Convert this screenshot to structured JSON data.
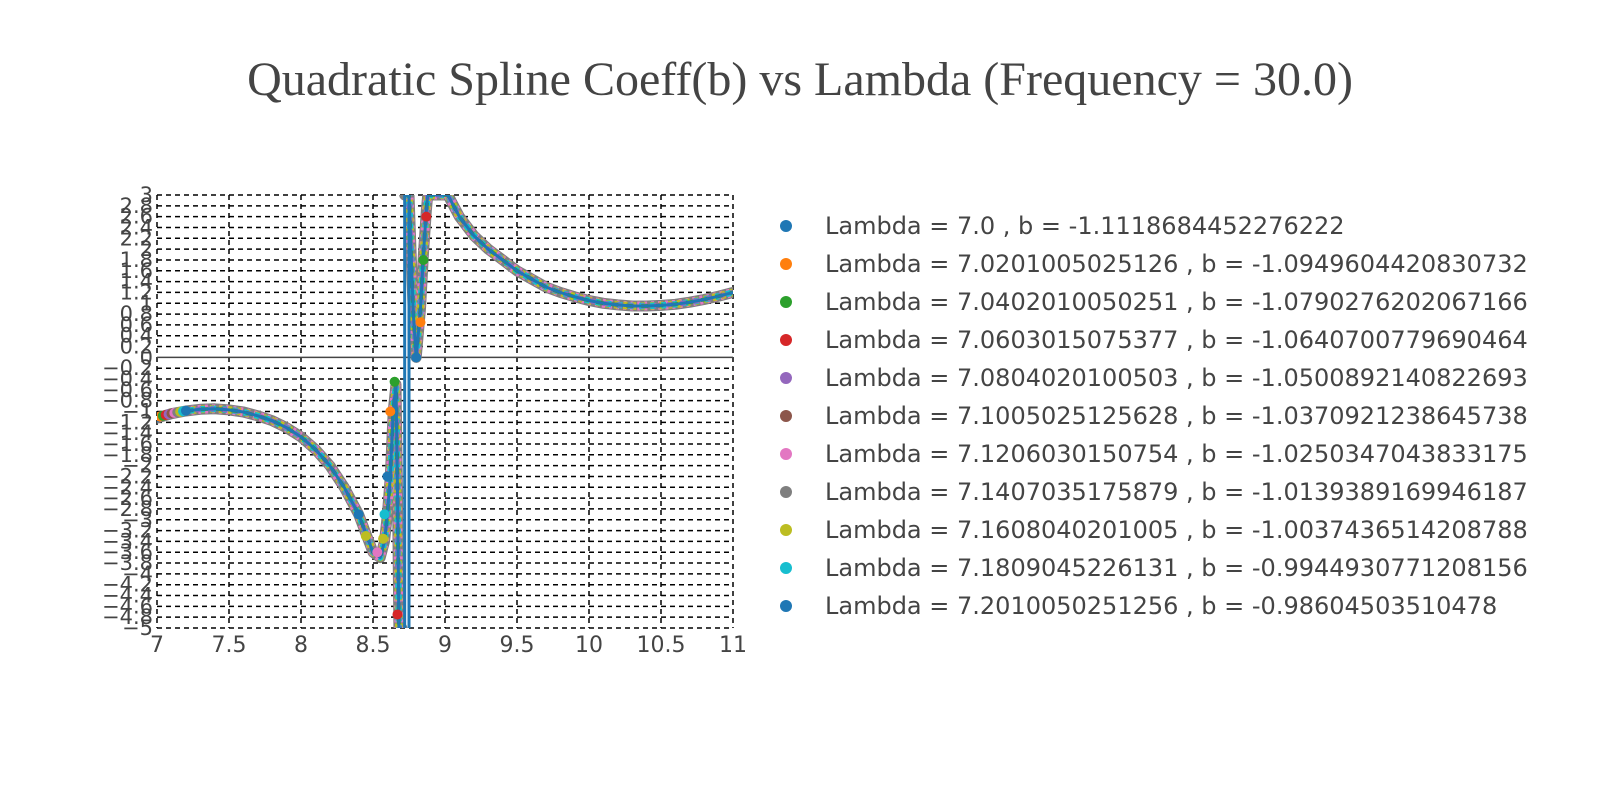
{
  "chart_data": {
    "type": "scatter",
    "title": "Quadratic Spline Coeff(b) vs Lambda (Frequency = 30.0)",
    "xlabel": "",
    "ylabel": "",
    "xlim": [
      7,
      11
    ],
    "ylim": [
      -5,
      3
    ],
    "x_ticks": [
      "7",
      "7.5",
      "8",
      "8.5",
      "9",
      "9.5",
      "10",
      "10.5",
      "11"
    ],
    "y_ticks": [
      "−5",
      "−4.8",
      "−4.6",
      "−4.4",
      "−4.2",
      "−4",
      "−3.8",
      "−3.6",
      "−3.4",
      "−3.2",
      "−3",
      "−2.8",
      "−2.6",
      "−2.4",
      "−2.2",
      "−2",
      "−1.8",
      "−1.6",
      "−1.4",
      "−1.2",
      "−1",
      "−0.8",
      "−0.6",
      "−0.4",
      "−0.2",
      "0",
      "0.2",
      "0.4",
      "0.6",
      "0.8",
      "1",
      "1.2",
      "1.4",
      "1.6",
      "1.8",
      "2",
      "2.2",
      "2.4",
      "2.6",
      "2.8",
      "3"
    ],
    "grid": true,
    "grid_style": "dashed",
    "legend_position": "right",
    "curve_color": "#1f77b4",
    "curve_samples": [
      [
        7.0,
        -1.12
      ],
      [
        7.1,
        -1.04
      ],
      [
        7.2,
        -0.99
      ],
      [
        7.3,
        -0.96
      ],
      [
        7.4,
        -0.95
      ],
      [
        7.5,
        -0.97
      ],
      [
        7.6,
        -1.01
      ],
      [
        7.7,
        -1.08
      ],
      [
        7.8,
        -1.17
      ],
      [
        7.9,
        -1.3
      ],
      [
        8.0,
        -1.47
      ],
      [
        8.1,
        -1.7
      ],
      [
        8.2,
        -2.0
      ],
      [
        8.3,
        -2.4
      ],
      [
        8.4,
        -2.9
      ],
      [
        8.45,
        -3.25
      ],
      [
        8.5,
        -3.6
      ],
      [
        8.55,
        -3.7
      ],
      [
        8.58,
        -3.4
      ],
      [
        8.6,
        -2.9
      ],
      [
        8.62,
        -2.2
      ],
      [
        8.64,
        -1.0
      ],
      [
        8.66,
        -0.5
      ],
      [
        8.67,
        -2.5
      ],
      [
        8.68,
        -5.0
      ],
      [
        8.7,
        -5.0
      ]
    ],
    "curve_samples_right": [
      [
        8.72,
        3.0
      ],
      [
        8.75,
        3.0
      ],
      [
        8.78,
        0.8
      ],
      [
        8.8,
        0.0
      ],
      [
        8.83,
        0.9
      ],
      [
        8.85,
        1.9
      ],
      [
        8.87,
        2.7
      ],
      [
        8.88,
        3.0
      ],
      [
        9.02,
        3.0
      ],
      [
        9.1,
        2.6
      ],
      [
        9.2,
        2.25
      ],
      [
        9.3,
        2.0
      ],
      [
        9.4,
        1.8
      ],
      [
        9.5,
        1.6
      ],
      [
        9.6,
        1.45
      ],
      [
        9.7,
        1.3
      ],
      [
        9.8,
        1.2
      ],
      [
        9.9,
        1.12
      ],
      [
        10.0,
        1.05
      ],
      [
        10.1,
        1.0
      ],
      [
        10.2,
        0.97
      ],
      [
        10.3,
        0.95
      ],
      [
        10.4,
        0.95
      ],
      [
        10.5,
        0.96
      ],
      [
        10.6,
        0.98
      ],
      [
        10.7,
        1.02
      ],
      [
        10.8,
        1.07
      ],
      [
        10.9,
        1.13
      ],
      [
        11.0,
        1.2
      ]
    ],
    "series": [
      {
        "name": "Lambda = 7.0 , b = -1.1118684452276222",
        "x": 7.0,
        "y": -1.1118684452276222,
        "color": "#1f77b4"
      },
      {
        "name": "Lambda = 7.0201005025126 , b = -1.0949604420830732",
        "x": 7.0201005025126,
        "y": -1.0949604420830732,
        "color": "#ff7f0e"
      },
      {
        "name": "Lambda = 7.0402010050251 , b = -1.0790276202067166",
        "x": 7.0402010050251,
        "y": -1.0790276202067166,
        "color": "#2ca02c"
      },
      {
        "name": "Lambda = 7.0603015075377 , b = -1.0640700779690464",
        "x": 7.0603015075377,
        "y": -1.0640700779690464,
        "color": "#d62728"
      },
      {
        "name": "Lambda = 7.0804020100503 , b = -1.0500892140822693",
        "x": 7.0804020100503,
        "y": -1.0500892140822693,
        "color": "#9467bd"
      },
      {
        "name": "Lambda = 7.1005025125628 , b = -1.0370921238645738",
        "x": 7.1005025125628,
        "y": -1.0370921238645738,
        "color": "#8c564b"
      },
      {
        "name": "Lambda = 7.1206030150754 , b = -1.0250347043833175",
        "x": 7.1206030150754,
        "y": -1.0250347043833175,
        "color": "#e377c2"
      },
      {
        "name": "Lambda = 7.1407035175879 , b = -1.0139389169946187",
        "x": 7.1407035175879,
        "y": -1.0139389169946187,
        "color": "#7f7f7f"
      },
      {
        "name": "Lambda = 7.1608040201005 , b = -1.0037436514208788",
        "x": 7.1608040201005,
        "y": -1.0037436514208788,
        "color": "#bcbd22"
      },
      {
        "name": "Lambda = 7.1809045226131 , b = -0.9944930771208156",
        "x": 7.1809045226131,
        "y": -0.9944930771208156,
        "color": "#17becf"
      },
      {
        "name": "Lambda = 7.2010050251256 , b = -0.98604503510478",
        "x": 7.2010050251256,
        "y": -0.98604503510478,
        "color": "#1f77b4"
      }
    ],
    "extra_points": [
      {
        "x": 8.4,
        "y": -2.9,
        "color": "#1f77b4"
      },
      {
        "x": 8.45,
        "y": -3.3,
        "color": "#bcbd22"
      },
      {
        "x": 8.53,
        "y": -3.6,
        "color": "#e377c2"
      },
      {
        "x": 8.57,
        "y": -3.35,
        "color": "#bcbd22"
      },
      {
        "x": 8.58,
        "y": -2.9,
        "color": "#17becf"
      },
      {
        "x": 8.6,
        "y": -2.2,
        "color": "#1f77b4"
      },
      {
        "x": 8.62,
        "y": -1.0,
        "color": "#ff7f0e"
      },
      {
        "x": 8.65,
        "y": -0.45,
        "color": "#2ca02c"
      },
      {
        "x": 8.67,
        "y": -4.75,
        "color": "#d62728"
      },
      {
        "x": 8.8,
        "y": 0.0,
        "color": "#1f77b4"
      },
      {
        "x": 8.83,
        "y": 0.65,
        "color": "#ff7f0e"
      },
      {
        "x": 8.85,
        "y": 1.8,
        "color": "#2ca02c"
      },
      {
        "x": 8.87,
        "y": 2.6,
        "color": "#d62728"
      }
    ]
  }
}
